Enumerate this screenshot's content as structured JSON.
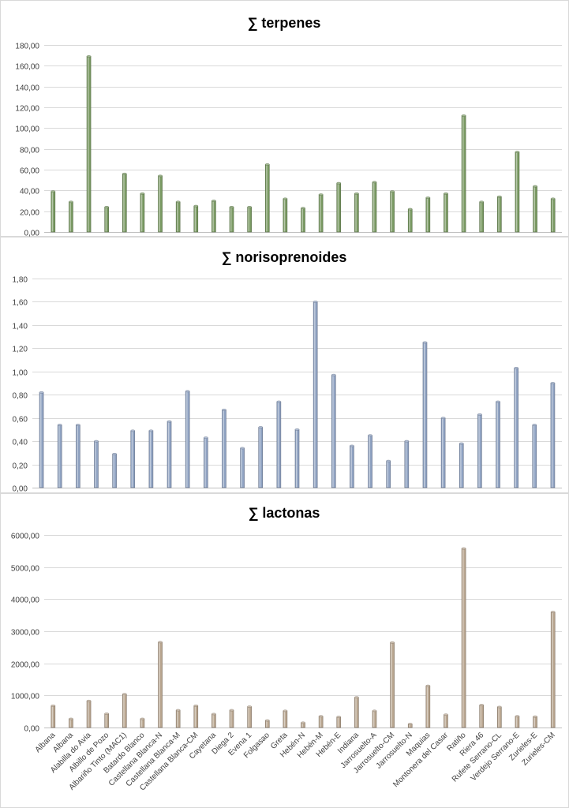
{
  "chart_data": [
    {
      "type": "bar",
      "title": "∑  terpenes",
      "ylim": [
        0,
        180
      ],
      "ytick_step": 20,
      "ytick_labels": [
        "0,00",
        "20,00",
        "40,00",
        "60,00",
        "80,00",
        "100,00",
        "120,00",
        "140,00",
        "160,00",
        "180,00"
      ],
      "grid": true,
      "categories": [
        "Albana",
        "Albana",
        "Alabilla do Avia",
        "Albillo de Pozo",
        "Albariño Tinto (MAC1)",
        "Batardo Blanco",
        "Castellana Blanca-N",
        "Castellana Blanca-M",
        "Castellana Blanca-CM",
        "Cayetana",
        "Diega 2",
        "Evena 1",
        "Folgasao",
        "Greta",
        "Hebén-N",
        "Hebén-M",
        "Hebén-E",
        "Indiana",
        "Jarrosuelto-A",
        "Jarrosuelto-CM",
        "Jarrosuelto-N",
        "Maquias",
        "Montonera del Casar",
        "Ratiño",
        "Riera 46",
        "Rufete Serrano-CL",
        "Verdejo Serrano-E",
        "Zurieles-E",
        "Zurieles-CM"
      ],
      "values": [
        39,
        29,
        169,
        24,
        56,
        37,
        54,
        29,
        25,
        30,
        24,
        24,
        65,
        32,
        23,
        36,
        47,
        37,
        48,
        39,
        22,
        33,
        37,
        112,
        29,
        34,
        77,
        44,
        32
      ],
      "color": "#7a9a63"
    },
    {
      "type": "bar",
      "title": "∑ norisoprenoides",
      "ylim": [
        0,
        1.8
      ],
      "ytick_step": 0.2,
      "ytick_labels": [
        "0,00",
        "0,20",
        "0,40",
        "0,60",
        "0,80",
        "1,00",
        "1,20",
        "1,40",
        "1,60",
        "1,80"
      ],
      "grid": true,
      "categories": [
        "Albana",
        "Albana",
        "Alabilla do Avia",
        "Albillo de Pozo",
        "Albariño Tinto (MAC1)",
        "Batardo Blanco",
        "Castellana Blanca-N",
        "Castellana Blanca-M",
        "Castellana Blanca-CM",
        "Cayetana",
        "Diega 2",
        "Evena 1",
        "Folgasao",
        "Greta",
        "Hebén-N",
        "Hebén-M",
        "Hebén-E",
        "Indiana",
        "Jarrosuelto-A",
        "Jarrosuelto-CM",
        "Jarrosuelto-N",
        "Maquias",
        "Montonera del Casar",
        "Ratiño",
        "Riera 46",
        "Rufete Serrano-CL",
        "Verdejo Serrano-E",
        "Zurieles-E",
        "Zurieles-CM"
      ],
      "values": [
        0.82,
        0.54,
        0.54,
        0.4,
        0.29,
        0.49,
        0.49,
        0.57,
        0.83,
        0.43,
        0.67,
        0.34,
        0.52,
        0.74,
        0.5,
        1.6,
        0.97,
        0.36,
        0.45,
        0.23,
        0.4,
        1.25,
        0.6,
        0.38,
        0.63,
        0.74,
        1.03,
        0.54,
        0.9
      ],
      "color": "#8fa2c2"
    },
    {
      "type": "bar",
      "title": "∑ lactonas",
      "ylim": [
        0,
        6000
      ],
      "ytick_step": 1000,
      "ytick_labels": [
        "0,00",
        "1000,00",
        "2000,00",
        "3000,00",
        "4000,00",
        "5000,00",
        "6000,00"
      ],
      "grid": true,
      "categories": [
        "Albana",
        "Albana",
        "Alabilla do Avia",
        "Albillo de Pozo",
        "Albariño Tinto (MAC1)",
        "Batardo Blanco",
        "Castellana Blanca-N",
        "Castellana Blanca-M",
        "Castellana Blanca-CM",
        "Cayetana",
        "Diega 2",
        "Evena 1",
        "Folgasao",
        "Greta",
        "Hebén-N",
        "Hebén-M",
        "Hebén-E",
        "Indiana",
        "Jarrosuelto-A",
        "Jarrosuelto-CM",
        "Jarrosuelto-N",
        "Maquias",
        "Montonera del Casar",
        "Ratiño",
        "Riera 46",
        "Rufete Serrano-CL",
        "Verdejo Serrano-E",
        "Zurieles-E",
        "Zurieles-CM"
      ],
      "values": [
        680,
        270,
        830,
        430,
        1040,
        270,
        2660,
        540,
        680,
        420,
        540,
        650,
        220,
        520,
        150,
        350,
        330,
        940,
        520,
        2650,
        110,
        1300,
        400,
        5580,
        700,
        640,
        350,
        340,
        3600
      ],
      "color": "#b8a58f"
    }
  ]
}
